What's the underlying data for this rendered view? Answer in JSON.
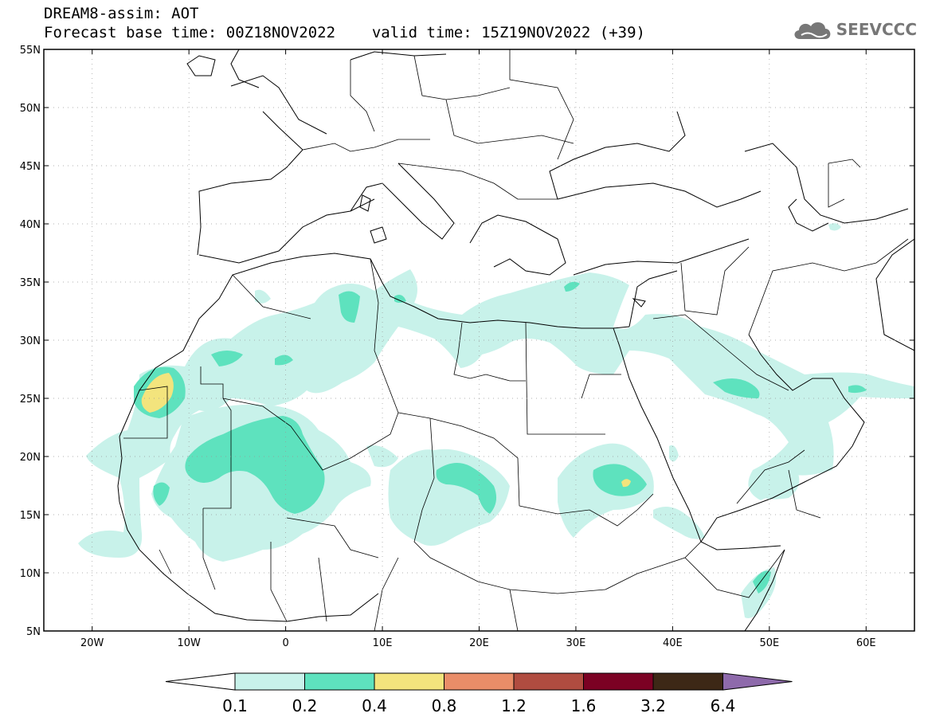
{
  "header": {
    "title": "DREAM8-assim: AOT",
    "forecast_base": "Forecast base time: 00Z18NOV2022",
    "valid_time": "valid time: 15Z19NOV2022 (+39)",
    "logo_text": "SEEVCCC"
  },
  "map": {
    "lon_range": [
      -25,
      65
    ],
    "lat_range": [
      5,
      55
    ],
    "lon_ticks": [
      {
        "value": -20,
        "label": "20W"
      },
      {
        "value": -10,
        "label": "10W"
      },
      {
        "value": 0,
        "label": "0"
      },
      {
        "value": 10,
        "label": "10E"
      },
      {
        "value": 20,
        "label": "20E"
      },
      {
        "value": 30,
        "label": "30E"
      },
      {
        "value": 40,
        "label": "40E"
      },
      {
        "value": 50,
        "label": "50E"
      },
      {
        "value": 60,
        "label": "60E"
      }
    ],
    "lat_ticks": [
      {
        "value": 55,
        "label": "55N"
      },
      {
        "value": 50,
        "label": "50N"
      },
      {
        "value": 45,
        "label": "45N"
      },
      {
        "value": 40,
        "label": "40N"
      },
      {
        "value": 35,
        "label": "35N"
      },
      {
        "value": 30,
        "label": "30N"
      },
      {
        "value": 25,
        "label": "25N"
      },
      {
        "value": 20,
        "label": "20N"
      },
      {
        "value": 15,
        "label": "15N"
      },
      {
        "value": 10,
        "label": "10N"
      },
      {
        "value": 5,
        "label": "5N"
      }
    ],
    "grid": true
  },
  "colorbar": {
    "levels": [
      "0.1",
      "0.2",
      "0.4",
      "0.8",
      "1.2",
      "1.6",
      "3.2",
      "6.4"
    ],
    "colors": [
      "#c8f2ea",
      "#5ee2be",
      "#f3e47d",
      "#e98d68",
      "#b04c40",
      "#7b0123",
      "#3d2816",
      "#8e6aab"
    ],
    "under_color": "#ffffff"
  },
  "colors": {
    "aot_01_02": "#c8f2ea",
    "aot_02_04": "#5ee2be",
    "aot_04_08": "#f3e47d",
    "coast": "#000000"
  }
}
